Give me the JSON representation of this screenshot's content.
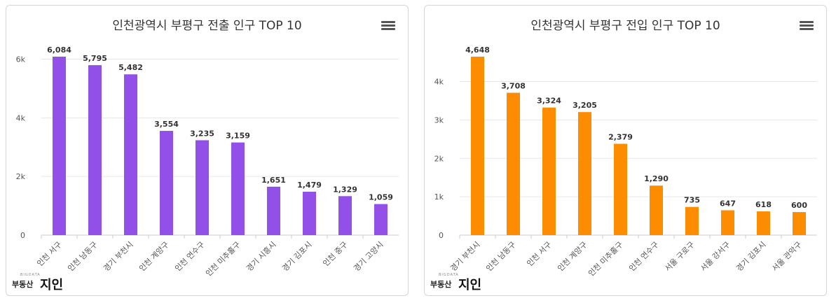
{
  "charts": [
    {
      "title": "인천광역시 부평구 전출 인구 TOP 10",
      "color": "#9250e8",
      "menu_icon": "hamburger-icon",
      "logo": {
        "tag": "BIGDATA",
        "main": "부동산",
        "brand": "지인"
      }
    },
    {
      "title": "인천광역시 부평구 전입 인구 TOP 10",
      "color": "#fd8c00",
      "menu_icon": "hamburger-icon",
      "logo": {
        "tag": "BIGDATA",
        "main": "부동산",
        "brand": "지인"
      }
    }
  ],
  "chart_data": [
    {
      "type": "bar",
      "title": "인천광역시 부평구 전출 인구 TOP 10",
      "categories": [
        "인천 서구",
        "인천 남동구",
        "경기 부천시",
        "인천 계양구",
        "인천 연수구",
        "인천 미추홀구",
        "경기 시흥시",
        "경기 김포시",
        "인천 중구",
        "경기 고양시"
      ],
      "values": [
        6084,
        5795,
        5482,
        3554,
        3235,
        3159,
        1651,
        1479,
        1329,
        1059
      ],
      "data_labels": [
        "6,084",
        "5,795",
        "5,482",
        "3,554",
        "3,235",
        "3,159",
        "1,651",
        "1,479",
        "1,329",
        "1,059"
      ],
      "yticks": [
        0,
        2000,
        4000,
        6000
      ],
      "ytick_labels": [
        "0",
        "2k",
        "4k",
        "6k"
      ],
      "ylim": [
        0,
        6084
      ],
      "color": "#9250e8",
      "grid": true,
      "legend": "none"
    },
    {
      "type": "bar",
      "title": "인천광역시 부평구 전입 인구 TOP 10",
      "categories": [
        "경기 부천시",
        "인천 남동구",
        "인천 서구",
        "인천 계양구",
        "인천 미추홀구",
        "인천 연수구",
        "서울 구로구",
        "서울 강서구",
        "경기 김포시",
        "서울 관악구"
      ],
      "values": [
        4648,
        3708,
        3324,
        3205,
        2379,
        1290,
        735,
        647,
        618,
        600
      ],
      "data_labels": [
        "4,648",
        "3,708",
        "3,324",
        "3,205",
        "2,379",
        "1,290",
        "735",
        "647",
        "618",
        "600"
      ],
      "yticks": [
        0,
        1000,
        2000,
        3000,
        4000
      ],
      "ytick_labels": [
        "0",
        "1k",
        "2k",
        "3k",
        "4k"
      ],
      "ylim": [
        0,
        4648
      ],
      "color": "#fd8c00",
      "grid": true,
      "legend": "none"
    }
  ]
}
